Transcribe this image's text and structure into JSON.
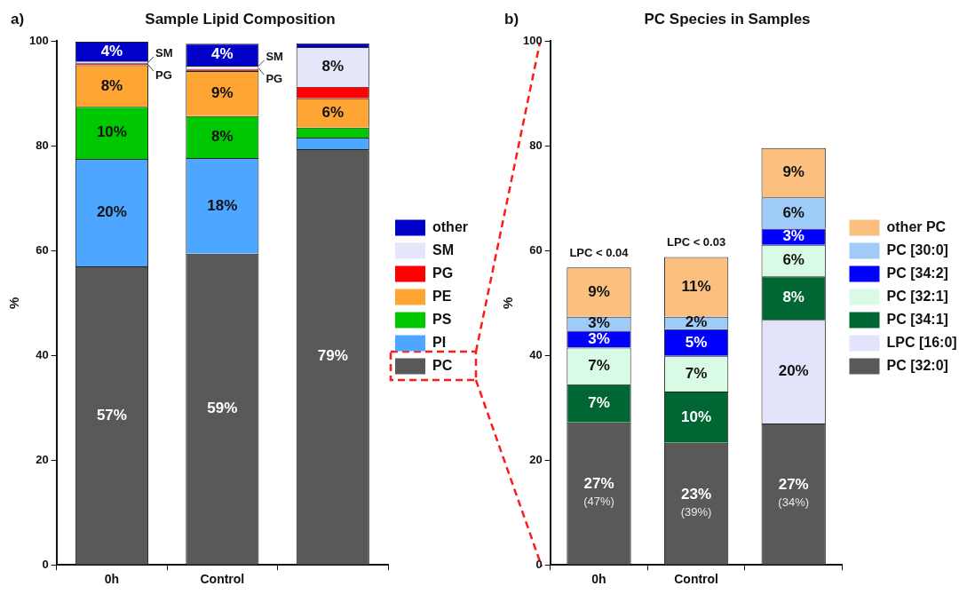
{
  "chart_data": [
    {
      "type": "bar",
      "title": "Sample Lipid Composition",
      "ylabel": "%",
      "categories": [
        "0h",
        "Control",
        null
      ],
      "stacked": true,
      "ylim": [
        0,
        100
      ],
      "yticks": [
        0,
        20,
        40,
        60,
        80,
        100
      ],
      "grid": false,
      "legend": "right",
      "series": [
        {
          "name": "PC",
          "color": "#595959",
          "values": [
            57.0,
            59.4,
            79.4
          ],
          "value_labels": [
            "57%",
            "59%",
            "79%"
          ]
        },
        {
          "name": "PI",
          "color": "#4da6ff",
          "values": [
            20.5,
            18.3,
            2.2
          ],
          "value_labels": [
            "20%",
            "18%",
            null
          ]
        },
        {
          "name": "PS",
          "color": "#00c800",
          "values": [
            10.0,
            8.0,
            1.9
          ],
          "value_labels": [
            "10%",
            "8%",
            null
          ]
        },
        {
          "name": "PE",
          "color": "#ffa533",
          "values": [
            7.9,
            8.6,
            5.6
          ],
          "value_labels": [
            "8%",
            "9%",
            "6%"
          ]
        },
        {
          "name": "PG",
          "color": "#ff0000",
          "values": [
            0.4,
            0.3,
            2.2
          ]
        },
        {
          "name": "SM",
          "color": "#e6e6fa",
          "values": [
            0.3,
            0.7,
            7.6
          ],
          "value_labels": [
            null,
            null,
            "8%"
          ]
        },
        {
          "name": "other",
          "color": "#0000c8",
          "values": [
            3.8,
            4.2,
            0.7
          ],
          "value_labels": [
            "4%",
            "4%",
            null
          ]
        }
      ],
      "annotations": [
        "a)",
        "SM",
        "PG",
        "SM",
        "PG"
      ]
    },
    {
      "type": "bar",
      "title": "PC Species in Samples",
      "ylabel": "%",
      "categories": [
        "0h",
        "Control",
        null
      ],
      "stacked": true,
      "ylim": [
        0,
        100
      ],
      "yticks": [
        0,
        20,
        40,
        60,
        80,
        100
      ],
      "grid": false,
      "legend": "right",
      "series": [
        {
          "name": "PC [32:0]",
          "color": "#595959",
          "values": [
            27.2,
            23.3,
            27.0
          ],
          "value_labels": [
            "27%\n(47%)",
            "23%\n(39%)",
            "27%\n(34%)"
          ]
        },
        {
          "name": "LPC [16:0]",
          "color": "#e3e3fb",
          "values": [
            null,
            null,
            19.8
          ],
          "value_labels": [
            null,
            null,
            "20%"
          ]
        },
        {
          "name": "PC [34:1]",
          "color": "#006633",
          "values": [
            7.3,
            9.8,
            8.3
          ],
          "value_labels": [
            "7%",
            "10%",
            "8%"
          ]
        },
        {
          "name": "PC [32:1]",
          "color": "#d9fbe6",
          "values": [
            7.0,
            6.8,
            6.0
          ],
          "value_labels": [
            "7%",
            "7%",
            "6%"
          ]
        },
        {
          "name": "PC [34:2]",
          "color": "#0000ff",
          "values": [
            3.2,
            5.1,
            3.1
          ],
          "value_labels": [
            "3%",
            "5%",
            "3%"
          ]
        },
        {
          "name": "PC [30:0]",
          "color": "#9ecbf7",
          "values": [
            2.7,
            2.4,
            6.0
          ],
          "value_labels": [
            "3%",
            "2%",
            "6%"
          ]
        },
        {
          "name": "other PC",
          "color": "#fbbf80",
          "values": [
            9.4,
            11.4,
            9.4
          ],
          "value_labels": [
            "9%",
            "11%",
            "9%"
          ]
        }
      ],
      "annotations": [
        "b)",
        "LPC < 0.04",
        "LPC < 0.03"
      ]
    }
  ]
}
